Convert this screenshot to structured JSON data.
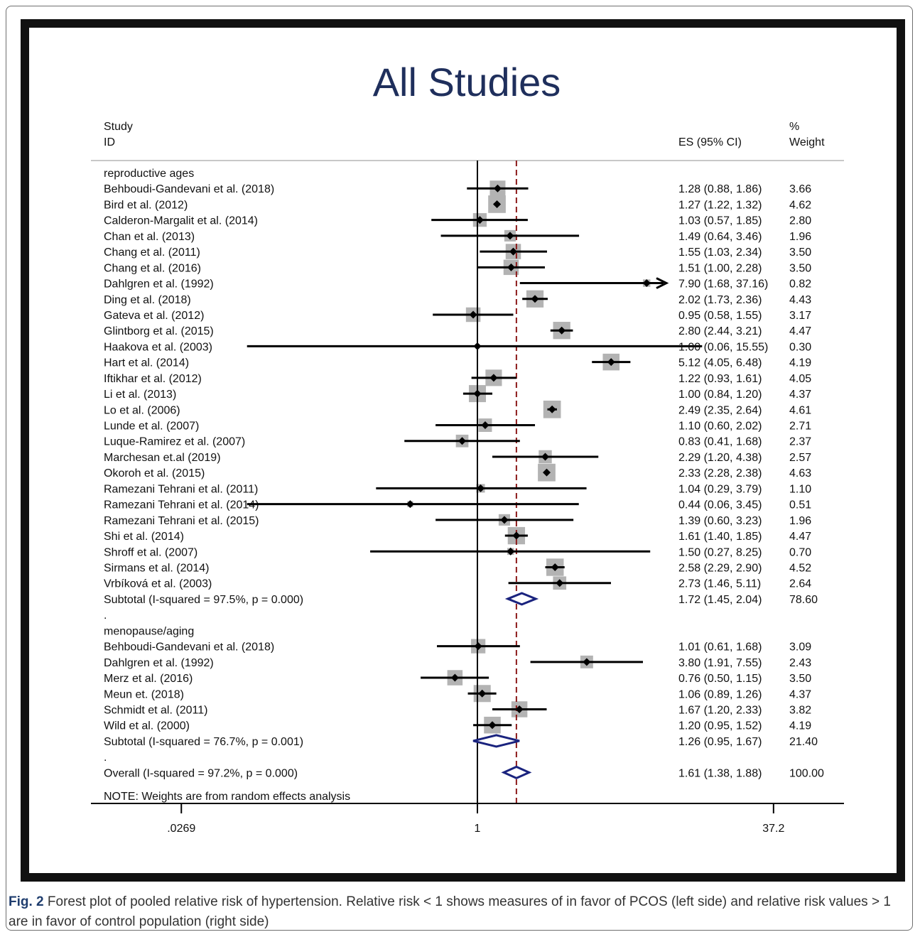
{
  "caption": {
    "label": "Fig. 2",
    "text": "Forest plot of pooled relative risk of hypertension. Relative risk < 1 shows measures of in favor of PCOS (left side) and relative risk values > 1 are in favor of control population (right side)"
  },
  "chart_data": {
    "type": "forest",
    "title": "All Studies",
    "header": {
      "study_line1": "Study",
      "study_line2": "ID",
      "es_label": "ES (95% CI)",
      "weight_line1": "%",
      "weight_line2": "Weight"
    },
    "x_scale": "log",
    "xlim": [
      0.0269,
      37.2
    ],
    "x_ticks": [
      ".0269",
      "1",
      "37.2"
    ],
    "x_tick_values": [
      0.0269,
      1,
      37.2
    ],
    "null_line": 1,
    "overall_line": 1.61,
    "colors": {
      "box": "#b3b3b3",
      "diamond": "#1a237e",
      "overall_line": "#8b1a1a",
      "title": "#1f2f5c"
    },
    "note": "NOTE: Weights are from random effects analysis",
    "rows": [
      {
        "kind": "group",
        "label": "reproductive ages"
      },
      {
        "kind": "study",
        "label": "Behboudi-Gandevani et al. (2018)",
        "es": 1.28,
        "lo": 0.88,
        "hi": 1.86,
        "ci_text": "1.28 (0.88, 1.86)",
        "weight": 3.66,
        "weight_text": "3.66"
      },
      {
        "kind": "study",
        "label": "Bird et al. (2012)",
        "es": 1.27,
        "lo": 1.22,
        "hi": 1.32,
        "ci_text": "1.27 (1.22, 1.32)",
        "weight": 4.62,
        "weight_text": "4.62"
      },
      {
        "kind": "study",
        "label": "Calderon-Margalit et al. (2014)",
        "es": 1.03,
        "lo": 0.57,
        "hi": 1.85,
        "ci_text": "1.03 (0.57, 1.85)",
        "weight": 2.8,
        "weight_text": "2.80"
      },
      {
        "kind": "study",
        "label": "Chan et al. (2013)",
        "es": 1.49,
        "lo": 0.64,
        "hi": 3.46,
        "ci_text": "1.49 (0.64, 3.46)",
        "weight": 1.96,
        "weight_text": "1.96"
      },
      {
        "kind": "study",
        "label": "Chang et al. (2011)",
        "es": 1.55,
        "lo": 1.03,
        "hi": 2.34,
        "ci_text": "1.55 (1.03, 2.34)",
        "weight": 3.5,
        "weight_text": "3.50"
      },
      {
        "kind": "study",
        "label": "Chang et al. (2016)",
        "es": 1.51,
        "lo": 1.0,
        "hi": 2.28,
        "ci_text": "1.51 (1.00, 2.28)",
        "weight": 3.5,
        "weight_text": "3.50"
      },
      {
        "kind": "study",
        "label": "Dahlgren et al. (1992)",
        "es": 7.9,
        "lo": 1.68,
        "hi": 37.16,
        "ci_text": "7.90 (1.68, 37.16)",
        "weight": 0.82,
        "weight_text": "0.82",
        "arrow": true
      },
      {
        "kind": "study",
        "label": "Ding et al. (2018)",
        "es": 2.02,
        "lo": 1.73,
        "hi": 2.36,
        "ci_text": "2.02 (1.73, 2.36)",
        "weight": 4.43,
        "weight_text": "4.43"
      },
      {
        "kind": "study",
        "label": "Gateva et al. (2012)",
        "es": 0.95,
        "lo": 0.58,
        "hi": 1.55,
        "ci_text": "0.95 (0.58, 1.55)",
        "weight": 3.17,
        "weight_text": "3.17"
      },
      {
        "kind": "study",
        "label": "Glintborg et al. (2015)",
        "es": 2.8,
        "lo": 2.44,
        "hi": 3.21,
        "ci_text": "2.80 (2.44, 3.21)",
        "weight": 4.47,
        "weight_text": "4.47"
      },
      {
        "kind": "study",
        "label": "Haakova et al. (2003)",
        "es": 1.0,
        "lo": 0.06,
        "hi": 15.55,
        "ci_text": "1.00 (0.06, 15.55)",
        "weight": 0.3,
        "weight_text": "0.30"
      },
      {
        "kind": "study",
        "label": "Hart et al. (2014)",
        "es": 5.12,
        "lo": 4.05,
        "hi": 6.48,
        "ci_text": "5.12 (4.05, 6.48)",
        "weight": 4.19,
        "weight_text": "4.19"
      },
      {
        "kind": "study",
        "label": "Iftikhar et al. (2012)",
        "es": 1.22,
        "lo": 0.93,
        "hi": 1.61,
        "ci_text": "1.22 (0.93, 1.61)",
        "weight": 4.05,
        "weight_text": "4.05"
      },
      {
        "kind": "study",
        "label": "Li et al. (2013)",
        "es": 1.0,
        "lo": 0.84,
        "hi": 1.2,
        "ci_text": "1.00 (0.84, 1.20)",
        "weight": 4.37,
        "weight_text": "4.37"
      },
      {
        "kind": "study",
        "label": "Lo et al. (2006)",
        "es": 2.49,
        "lo": 2.35,
        "hi": 2.64,
        "ci_text": "2.49 (2.35, 2.64)",
        "weight": 4.61,
        "weight_text": "4.61"
      },
      {
        "kind": "study",
        "label": "Lunde et al. (2007)",
        "es": 1.1,
        "lo": 0.6,
        "hi": 2.02,
        "ci_text": "1.10 (0.60, 2.02)",
        "weight": 2.71,
        "weight_text": "2.71"
      },
      {
        "kind": "study",
        "label": "Luque-Ramirez et al. (2007)",
        "es": 0.83,
        "lo": 0.41,
        "hi": 1.68,
        "ci_text": "0.83 (0.41, 1.68)",
        "weight": 2.37,
        "weight_text": "2.37"
      },
      {
        "kind": "study",
        "label": "Marchesan et.al (2019)",
        "es": 2.29,
        "lo": 1.2,
        "hi": 4.38,
        "ci_text": "2.29 (1.20, 4.38)",
        "weight": 2.57,
        "weight_text": "2.57"
      },
      {
        "kind": "study",
        "label": "Okoroh et al. (2015)",
        "es": 2.33,
        "lo": 2.28,
        "hi": 2.38,
        "ci_text": "2.33 (2.28, 2.38)",
        "weight": 4.63,
        "weight_text": "4.63"
      },
      {
        "kind": "study",
        "label": "Ramezani Tehrani et al. (2011)",
        "es": 1.04,
        "lo": 0.29,
        "hi": 3.79,
        "ci_text": "1.04 (0.29, 3.79)",
        "weight": 1.1,
        "weight_text": "1.10"
      },
      {
        "kind": "study",
        "label": "Ramezani Tehrani et al. (2014)",
        "es": 0.44,
        "lo": 0.06,
        "hi": 3.45,
        "ci_text": "0.44 (0.06, 3.45)",
        "weight": 0.51,
        "weight_text": "0.51"
      },
      {
        "kind": "study",
        "label": "Ramezani Tehrani et al. (2015)",
        "es": 1.39,
        "lo": 0.6,
        "hi": 3.23,
        "ci_text": "1.39 (0.60, 3.23)",
        "weight": 1.96,
        "weight_text": "1.96"
      },
      {
        "kind": "study",
        "label": "Shi et al. (2014)",
        "es": 1.61,
        "lo": 1.4,
        "hi": 1.85,
        "ci_text": "1.61 (1.40, 1.85)",
        "weight": 4.47,
        "weight_text": "4.47"
      },
      {
        "kind": "study",
        "label": "Shroff et al. (2007)",
        "es": 1.5,
        "lo": 0.27,
        "hi": 8.25,
        "ci_text": "1.50 (0.27, 8.25)",
        "weight": 0.7,
        "weight_text": "0.70"
      },
      {
        "kind": "study",
        "label": "Sirmans et al. (2014)",
        "es": 2.58,
        "lo": 2.29,
        "hi": 2.9,
        "ci_text": "2.58 (2.29, 2.90)",
        "weight": 4.52,
        "weight_text": "4.52"
      },
      {
        "kind": "study",
        "label": "Vrbíková et al. (2003)",
        "es": 2.73,
        "lo": 1.46,
        "hi": 5.11,
        "ci_text": "2.73 (1.46, 5.11)",
        "weight": 2.64,
        "weight_text": "2.64"
      },
      {
        "kind": "subtotal",
        "label": "Subtotal  (I-squared = 97.5%, p = 0.000)",
        "es": 1.72,
        "lo": 1.45,
        "hi": 2.04,
        "ci_text": "1.72 (1.45, 2.04)",
        "weight": 78.6,
        "weight_text": "78.60"
      },
      {
        "kind": "spacer",
        "label": "."
      },
      {
        "kind": "group",
        "label": "menopause/aging"
      },
      {
        "kind": "study",
        "label": "Behboudi-Gandevani et al. (2018)",
        "es": 1.01,
        "lo": 0.61,
        "hi": 1.68,
        "ci_text": "1.01 (0.61, 1.68)",
        "weight": 3.09,
        "weight_text": "3.09"
      },
      {
        "kind": "study",
        "label": "Dahlgren et al. (1992)",
        "es": 3.8,
        "lo": 1.91,
        "hi": 7.55,
        "ci_text": "3.80 (1.91, 7.55)",
        "weight": 2.43,
        "weight_text": "2.43"
      },
      {
        "kind": "study",
        "label": "Merz et al. (2016)",
        "es": 0.76,
        "lo": 0.5,
        "hi": 1.15,
        "ci_text": "0.76 (0.50, 1.15)",
        "weight": 3.5,
        "weight_text": "3.50"
      },
      {
        "kind": "study",
        "label": "Meun et. (2018)",
        "es": 1.06,
        "lo": 0.89,
        "hi": 1.26,
        "ci_text": "1.06 (0.89, 1.26)",
        "weight": 4.37,
        "weight_text": "4.37"
      },
      {
        "kind": "study",
        "label": "Schmidt et al. (2011)",
        "es": 1.67,
        "lo": 1.2,
        "hi": 2.33,
        "ci_text": "1.67 (1.20, 2.33)",
        "weight": 3.82,
        "weight_text": "3.82"
      },
      {
        "kind": "study",
        "label": "Wild et al. (2000)",
        "es": 1.2,
        "lo": 0.95,
        "hi": 1.52,
        "ci_text": "1.20 (0.95, 1.52)",
        "weight": 4.19,
        "weight_text": "4.19"
      },
      {
        "kind": "subtotal",
        "label": "Subtotal  (I-squared = 76.7%, p = 0.001)",
        "es": 1.26,
        "lo": 0.95,
        "hi": 1.67,
        "ci_text": "1.26 (0.95, 1.67)",
        "weight": 21.4,
        "weight_text": "21.40"
      },
      {
        "kind": "spacer",
        "label": "."
      },
      {
        "kind": "overall",
        "label": "Overall  (I-squared = 97.2%, p = 0.000)",
        "es": 1.61,
        "lo": 1.38,
        "hi": 1.88,
        "ci_text": "1.61 (1.38, 1.88)",
        "weight": 100.0,
        "weight_text": "100.00"
      }
    ]
  }
}
